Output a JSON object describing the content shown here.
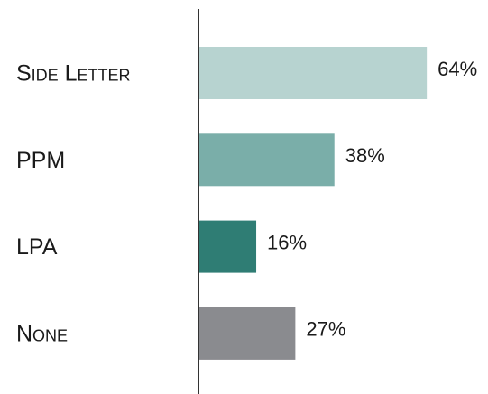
{
  "chart_data": {
    "type": "bar",
    "orientation": "horizontal",
    "categories": [
      "Side Letter",
      "PPM",
      "LPA",
      "None"
    ],
    "values": [
      64,
      38,
      16,
      27
    ],
    "value_labels": [
      "64%",
      "38%",
      "16%",
      "27%"
    ],
    "colors": [
      "#b7d3d0",
      "#7aaea9",
      "#2f7d74",
      "#8a8b8f"
    ]
  }
}
